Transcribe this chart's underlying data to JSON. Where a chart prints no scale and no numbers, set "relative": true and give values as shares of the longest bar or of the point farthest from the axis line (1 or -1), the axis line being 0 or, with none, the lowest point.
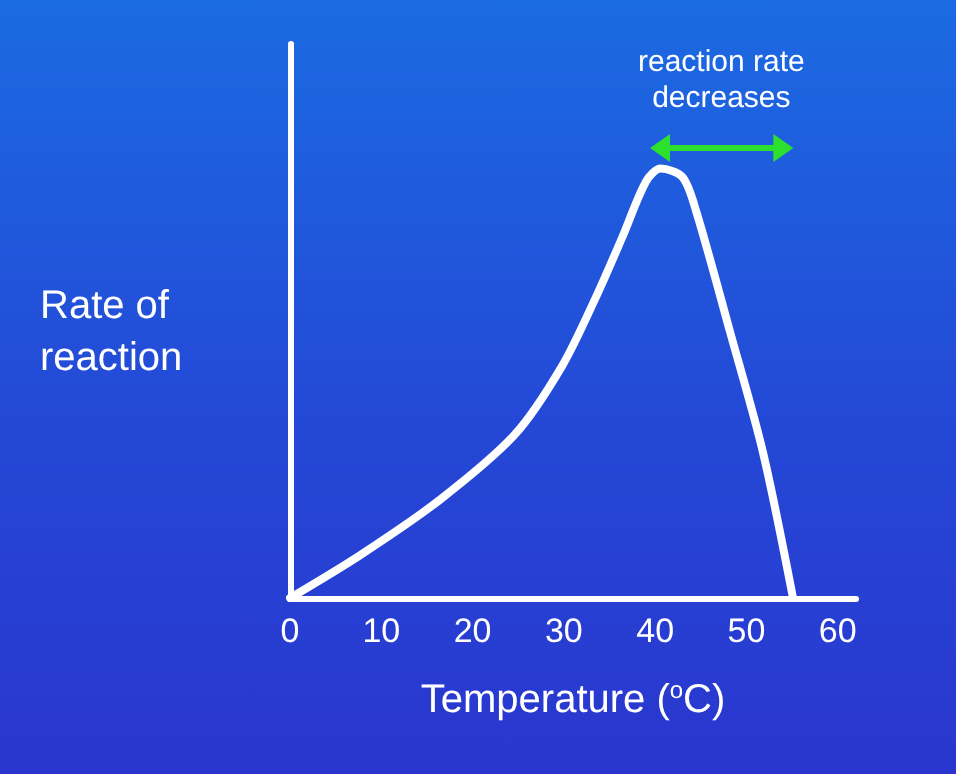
{
  "chart_data": {
    "type": "line",
    "relative": true,
    "xlabel": "Temperature ($^{o}$C)",
    "ylabel": "Rate of\nreaction",
    "x": [
      0,
      7.7,
      16.5,
      24.6,
      29.8,
      33.5,
      36.4,
      39,
      40.6,
      43,
      44.5,
      48.2,
      51.8,
      55.1
    ],
    "series": [
      {
        "color": "#ffffff",
        "values": [
          0,
          0.1,
          0.23,
          0.38,
          0.54,
          0.7,
          0.84,
          0.97,
          1,
          0.98,
          0.9,
          0.62,
          0.34,
          0
        ]
      }
    ],
    "xlim": [
      0,
      62
    ],
    "xticks": [
      0,
      10,
      20,
      30,
      40,
      50,
      60
    ],
    "tick_labels": "x",
    "grid": false,
    "marker": "none",
    "line_style": "solid",
    "annotations": [
      "reaction rate decreases"
    ]
  }
}
